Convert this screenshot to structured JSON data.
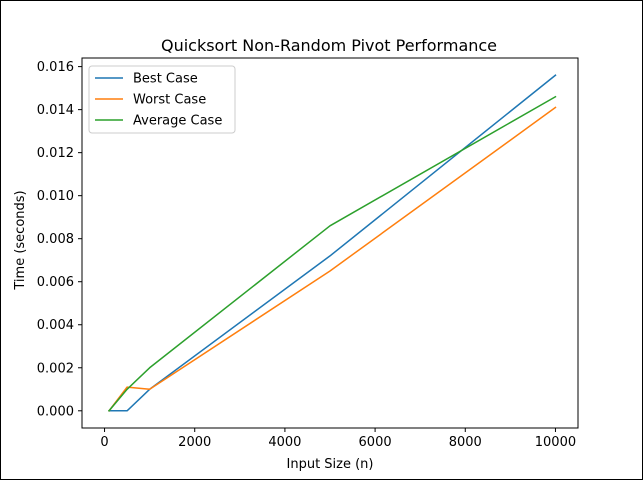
{
  "chart_data": {
    "type": "line",
    "title": "Quicksort Non-Random Pivot Performance",
    "xlabel": "Input Size (n)",
    "ylabel": "Time (seconds)",
    "xlim": [
      -500,
      10500
    ],
    "ylim": [
      -0.0008,
      0.0164
    ],
    "x_ticks": [
      0,
      2000,
      4000,
      6000,
      8000,
      10000
    ],
    "x_tick_labels": [
      "0",
      "2000",
      "4000",
      "6000",
      "8000",
      "10000"
    ],
    "y_ticks": [
      0,
      0.002,
      0.004,
      0.006,
      0.008,
      0.01,
      0.012,
      0.014,
      0.016
    ],
    "y_tick_labels": [
      "0.000",
      "0.002",
      "0.004",
      "0.006",
      "0.008",
      "0.010",
      "0.012",
      "0.014",
      "0.016"
    ],
    "grid": false,
    "legend_position": "top-left",
    "x": [
      100,
      500,
      1000,
      5000,
      10000
    ],
    "series": [
      {
        "name": "Best Case",
        "color": "#1f77b4",
        "values": [
          0.0,
          0.0,
          0.001,
          0.0072,
          0.0156
        ]
      },
      {
        "name": "Worst Case",
        "color": "#ff7f0e",
        "values": [
          0.0,
          0.0011,
          0.001,
          0.0065,
          0.0141
        ]
      },
      {
        "name": "Average Case",
        "color": "#2ca02c",
        "values": [
          0.0,
          0.001,
          0.002,
          0.0086,
          0.0146
        ]
      }
    ]
  }
}
